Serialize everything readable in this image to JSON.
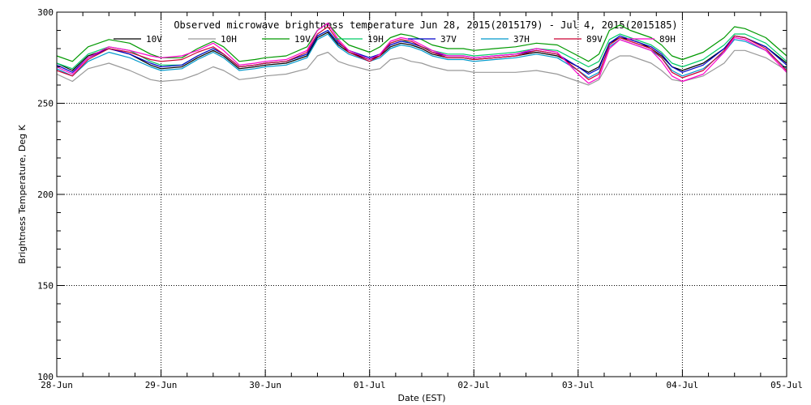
{
  "chart_data": {
    "type": "line",
    "title": "Observed microwave brightness temperature Jun 28, 2015(2015179) - Jul  4, 2015(2015185)",
    "xlabel": "Date (EST)",
    "ylabel": "Brightness Temperature, Deg K",
    "ylim": [
      100,
      300
    ],
    "yticks": [
      100,
      150,
      200,
      250,
      300
    ],
    "xlim": [
      0,
      7
    ],
    "x_tick_labels": [
      "28-Jun",
      "29-Jun",
      "30-Jun",
      "01-Jul",
      "02-Jul",
      "03-Jul",
      "04-Jul",
      "05-Jul"
    ],
    "grid": true,
    "legend_position": "top",
    "series": [
      {
        "name": "10V",
        "color": "#000000",
        "x": [
          0,
          0.15,
          0.3,
          0.5,
          0.7,
          0.9,
          1.0,
          1.2,
          1.35,
          1.5,
          1.6,
          1.75,
          1.9,
          2.0,
          2.2,
          2.4,
          2.5,
          2.6,
          2.7,
          2.8,
          3.0,
          3.1,
          3.2,
          3.3,
          3.4,
          3.5,
          3.6,
          3.75,
          3.9,
          4.0,
          4.2,
          4.4,
          4.6,
          4.8,
          5.0,
          5.1,
          5.2,
          5.3,
          5.4,
          5.5,
          5.6,
          5.7,
          5.8,
          5.9,
          6.0,
          6.2,
          6.4,
          6.5,
          6.6,
          6.8,
          7.0
        ],
        "values": [
          272,
          268,
          276,
          280,
          277,
          271,
          269,
          270,
          275,
          279,
          276,
          269,
          270,
          271,
          272,
          276,
          286,
          289,
          282,
          278,
          274,
          276,
          281,
          283,
          282,
          280,
          277,
          275,
          275,
          274,
          275,
          276,
          278,
          276,
          270,
          267,
          270,
          283,
          286,
          285,
          283,
          280,
          276,
          270,
          268,
          272,
          280,
          287,
          286,
          281,
          272
        ]
      },
      {
        "name": "10H",
        "color": "#999999",
        "x": [
          0,
          0.15,
          0.3,
          0.5,
          0.7,
          0.9,
          1.0,
          1.2,
          1.35,
          1.5,
          1.6,
          1.75,
          1.9,
          2.0,
          2.2,
          2.4,
          2.5,
          2.6,
          2.7,
          2.8,
          3.0,
          3.1,
          3.2,
          3.3,
          3.4,
          3.5,
          3.6,
          3.75,
          3.9,
          4.0,
          4.2,
          4.4,
          4.6,
          4.8,
          5.0,
          5.1,
          5.2,
          5.3,
          5.4,
          5.5,
          5.6,
          5.7,
          5.8,
          5.9,
          6.0,
          6.2,
          6.4,
          6.5,
          6.6,
          6.8,
          7.0
        ],
        "values": [
          266,
          262,
          269,
          272,
          268,
          263,
          262,
          263,
          266,
          270,
          268,
          263,
          264,
          265,
          266,
          269,
          276,
          278,
          273,
          271,
          268,
          269,
          274,
          275,
          273,
          272,
          270,
          268,
          268,
          267,
          267,
          267,
          268,
          266,
          262,
          260,
          263,
          273,
          276,
          276,
          274,
          272,
          268,
          263,
          262,
          265,
          272,
          279,
          279,
          275,
          268
        ]
      },
      {
        "name": "19V",
        "color": "#009900",
        "x": [
          0,
          0.15,
          0.3,
          0.5,
          0.7,
          0.9,
          1.0,
          1.2,
          1.35,
          1.5,
          1.6,
          1.75,
          1.9,
          2.0,
          2.2,
          2.4,
          2.5,
          2.6,
          2.7,
          2.8,
          3.0,
          3.1,
          3.2,
          3.3,
          3.4,
          3.5,
          3.6,
          3.75,
          3.9,
          4.0,
          4.2,
          4.4,
          4.6,
          4.8,
          5.0,
          5.1,
          5.2,
          5.3,
          5.4,
          5.5,
          5.6,
          5.7,
          5.8,
          5.9,
          6.0,
          6.2,
          6.4,
          6.5,
          6.6,
          6.8,
          7.0
        ],
        "values": [
          276,
          273,
          281,
          285,
          283,
          277,
          275,
          275,
          280,
          284,
          281,
          273,
          274,
          275,
          276,
          281,
          290,
          294,
          287,
          282,
          278,
          281,
          286,
          288,
          287,
          285,
          282,
          280,
          280,
          279,
          280,
          281,
          283,
          282,
          276,
          273,
          277,
          290,
          293,
          290,
          288,
          286,
          282,
          276,
          274,
          278,
          286,
          292,
          291,
          286,
          276
        ]
      },
      {
        "name": "19H",
        "color": "#00cc66",
        "x": [
          0,
          0.15,
          0.3,
          0.5,
          0.7,
          0.9,
          1.0,
          1.2,
          1.35,
          1.5,
          1.6,
          1.75,
          1.9,
          2.0,
          2.2,
          2.4,
          2.5,
          2.6,
          2.7,
          2.8,
          3.0,
          3.1,
          3.2,
          3.3,
          3.4,
          3.5,
          3.6,
          3.75,
          3.9,
          4.0,
          4.2,
          4.4,
          4.6,
          4.8,
          5.0,
          5.1,
          5.2,
          5.3,
          5.4,
          5.5,
          5.6,
          5.7,
          5.8,
          5.9,
          6.0,
          6.2,
          6.4,
          6.5,
          6.6,
          6.8,
          7.0
        ],
        "values": [
          272,
          269,
          277,
          281,
          279,
          273,
          271,
          271,
          276,
          280,
          277,
          270,
          271,
          272,
          273,
          277,
          287,
          290,
          283,
          279,
          275,
          277,
          283,
          285,
          283,
          281,
          279,
          277,
          277,
          276,
          277,
          278,
          280,
          279,
          273,
          270,
          273,
          285,
          288,
          286,
          284,
          282,
          278,
          272,
          270,
          274,
          282,
          288,
          288,
          283,
          273
        ]
      },
      {
        "name": "37V",
        "color": "#0000cc",
        "x": [
          0,
          0.15,
          0.3,
          0.5,
          0.7,
          0.9,
          1.0,
          1.2,
          1.35,
          1.5,
          1.6,
          1.75,
          1.9,
          2.0,
          2.2,
          2.4,
          2.5,
          2.6,
          2.7,
          2.8,
          3.0,
          3.1,
          3.2,
          3.3,
          3.4,
          3.5,
          3.6,
          3.75,
          3.9,
          4.0,
          4.2,
          4.4,
          4.6,
          4.8,
          5.0,
          5.1,
          5.2,
          5.3,
          5.4,
          5.5,
          5.6,
          5.7,
          5.8,
          5.9,
          6.0,
          6.2,
          6.4,
          6.5,
          6.6,
          6.8,
          7.0
        ],
        "values": [
          271,
          267,
          275,
          280,
          277,
          272,
          270,
          271,
          276,
          280,
          277,
          270,
          271,
          272,
          273,
          277,
          287,
          290,
          283,
          279,
          275,
          277,
          282,
          284,
          283,
          281,
          278,
          276,
          276,
          275,
          276,
          277,
          279,
          277,
          270,
          266,
          269,
          283,
          287,
          285,
          283,
          281,
          277,
          270,
          267,
          271,
          280,
          287,
          286,
          281,
          271
        ]
      },
      {
        "name": "37H",
        "color": "#0099cc",
        "x": [
          0,
          0.15,
          0.3,
          0.5,
          0.7,
          0.9,
          1.0,
          1.2,
          1.35,
          1.5,
          1.6,
          1.75,
          1.9,
          2.0,
          2.2,
          2.4,
          2.5,
          2.6,
          2.7,
          2.8,
          3.0,
          3.1,
          3.2,
          3.3,
          3.4,
          3.5,
          3.6,
          3.75,
          3.9,
          4.0,
          4.2,
          4.4,
          4.6,
          4.8,
          5.0,
          5.1,
          5.2,
          5.3,
          5.4,
          5.5,
          5.6,
          5.7,
          5.8,
          5.9,
          6.0,
          6.2,
          6.4,
          6.5,
          6.6,
          6.8,
          7.0
        ],
        "values": [
          269,
          265,
          273,
          278,
          275,
          270,
          268,
          269,
          274,
          278,
          275,
          268,
          269,
          270,
          271,
          275,
          285,
          288,
          281,
          277,
          273,
          275,
          280,
          282,
          281,
          279,
          276,
          274,
          274,
          273,
          274,
          275,
          277,
          275,
          268,
          264,
          267,
          281,
          285,
          283,
          281,
          279,
          275,
          268,
          265,
          269,
          278,
          285,
          284,
          279,
          269
        ]
      },
      {
        "name": "89V",
        "color": "#cc0033",
        "x": [
          0,
          0.15,
          0.3,
          0.5,
          0.7,
          0.9,
          1.0,
          1.2,
          1.35,
          1.5,
          1.6,
          1.75,
          1.9,
          2.0,
          2.2,
          2.4,
          2.5,
          2.6,
          2.7,
          2.8,
          3.0,
          3.1,
          3.2,
          3.3,
          3.4,
          3.5,
          3.6,
          3.75,
          3.9,
          4.0,
          4.2,
          4.4,
          4.6,
          4.8,
          5.0,
          5.1,
          5.2,
          5.3,
          5.4,
          5.5,
          5.6,
          5.7,
          5.8,
          5.9,
          6.0,
          6.2,
          6.4,
          6.5,
          6.6,
          6.8,
          7.0
        ],
        "values": [
          268,
          265,
          274,
          280,
          278,
          274,
          273,
          274,
          278,
          281,
          277,
          270,
          271,
          272,
          273,
          278,
          288,
          292,
          284,
          278,
          273,
          276,
          283,
          285,
          284,
          281,
          278,
          275,
          275,
          274,
          275,
          276,
          279,
          277,
          268,
          263,
          266,
          282,
          286,
          284,
          282,
          280,
          275,
          267,
          264,
          268,
          279,
          287,
          286,
          280,
          268
        ]
      },
      {
        "name": "89H",
        "color": "#ff00cc",
        "x": [
          0,
          0.15,
          0.3,
          0.5,
          0.7,
          0.9,
          1.0,
          1.2,
          1.35,
          1.5,
          1.6,
          1.75,
          1.9,
          2.0,
          2.2,
          2.4,
          2.5,
          2.6,
          2.7,
          2.8,
          3.0,
          3.1,
          3.2,
          3.3,
          3.4,
          3.5,
          3.6,
          3.75,
          3.9,
          4.0,
          4.2,
          4.4,
          4.6,
          4.8,
          5.0,
          5.1,
          5.2,
          5.3,
          5.4,
          5.5,
          5.6,
          5.7,
          5.8,
          5.9,
          6.0,
          6.2,
          6.4,
          6.5,
          6.6,
          6.8,
          7.0
        ],
        "values": [
          270,
          266,
          275,
          281,
          279,
          276,
          275,
          276,
          279,
          283,
          279,
          271,
          272,
          273,
          274,
          279,
          290,
          294,
          285,
          279,
          274,
          277,
          284,
          286,
          285,
          282,
          279,
          276,
          276,
          275,
          276,
          277,
          280,
          278,
          266,
          261,
          264,
          280,
          285,
          283,
          281,
          279,
          273,
          265,
          262,
          266,
          278,
          286,
          285,
          279,
          267
        ]
      }
    ]
  }
}
